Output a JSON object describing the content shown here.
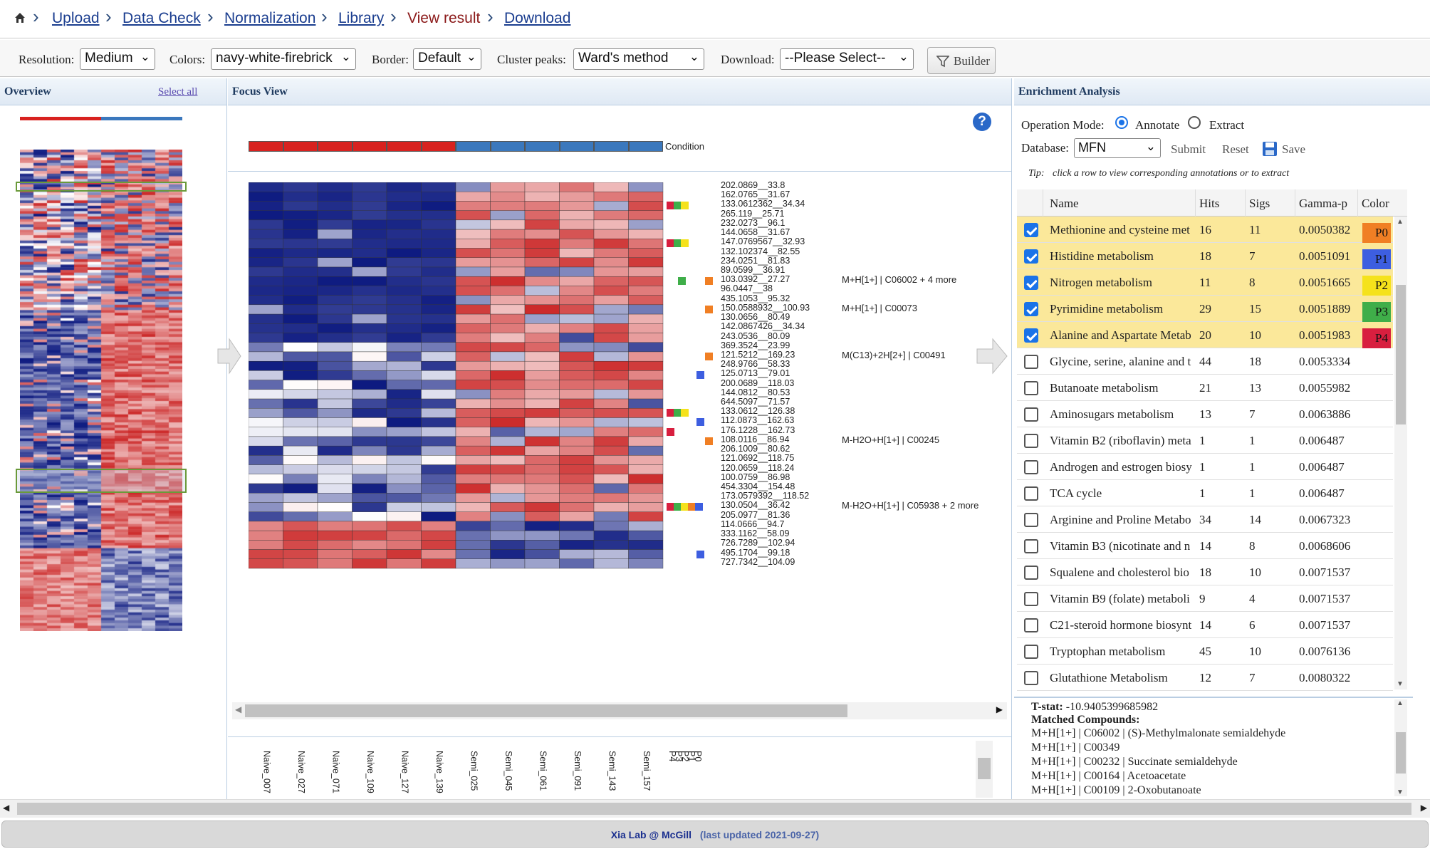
{
  "breadcrumb": {
    "items": [
      "Upload",
      "Data Check",
      "Normalization",
      "Library",
      "View result",
      "Download"
    ]
  },
  "toolbar": {
    "resolution_label": "Resolution:",
    "resolution_value": "Medium",
    "colors_label": "Colors:",
    "colors_value": "navy-white-firebrick",
    "border_label": "Border:",
    "border_value": "Default",
    "cluster_label": "Cluster peaks:",
    "cluster_value": "Ward's method",
    "download_label": "Download:",
    "download_value": "--Please Select--",
    "builder_label": "Builder"
  },
  "overview": {
    "title": "Overview",
    "select_all": "Select all"
  },
  "focus": {
    "title": "Focus View",
    "condition_label": "Condition",
    "peaks": [
      "202.0869__33.8",
      "162.0765__31.67",
      "133.0612362__34.34",
      "265.119__25.71",
      "232.0273__96.1",
      "144.0658__31.67",
      "147.0769567__32.93",
      "132.102374__82.55",
      "234.0251__81.83",
      "89.0599__36.91",
      "103.0392__27.27",
      "96.0447__38",
      "435.1053__95.32",
      "150.0588932__100.93",
      "130.0656__80.49",
      "142.0867426__34.34",
      "243.0536__80.09",
      "369.3524__23.99",
      "121.5212__169.23",
      "248.9766__58.33",
      "125.0713__79.01",
      "200.0689__118.03",
      "144.0812__80.53",
      "644.5097__71.57",
      "133.0612__126.38",
      "112.0873__162.63",
      "176.1228__162.73",
      "108.0116__86.94",
      "206.1009__80.62",
      "121.0692__118.75",
      "120.0659__118.24",
      "100.0759__86.98",
      "454.3304__154.48",
      "173.0579392__118.52",
      "130.0504__36.42",
      "205.0977__81.36",
      "114.0666__94.7",
      "333.1162__58.09",
      "726.7289__102.94",
      "495.1704__99.18",
      "727.7342__104.09"
    ],
    "annotations": [
      {
        "row": 10,
        "text": "M+H[1+] | C06002 + 4 more"
      },
      {
        "row": 13,
        "text": "M+H[1+] | C00073"
      },
      {
        "row": 18,
        "text": "M(C13)+2H[2+] | C00491"
      },
      {
        "row": 27,
        "text": "M-H2O+H[1+] | C00245"
      },
      {
        "row": 34,
        "text": "M-H2O+H[1+] | C05938 + 2 more"
      }
    ],
    "samples": [
      "Naive_007",
      "Naive_027",
      "Naive_071",
      "Naive_109",
      "Naive_127",
      "Naive_139",
      "Semi_025",
      "Semi_045",
      "Semi_061",
      "Semi_091",
      "Semi_143",
      "Semi_157"
    ],
    "marker_labels": [
      "P0",
      "P1",
      "P2",
      "P3",
      "P4"
    ]
  },
  "enrichment": {
    "title": "Enrichment Analysis",
    "op_mode_label": "Operation Mode:",
    "annotate_label": "Annotate",
    "extract_label": "Extract",
    "database_label": "Database:",
    "database_value": "MFN",
    "submit_label": "Submit",
    "reset_label": "Reset",
    "save_label": "Save",
    "tip_label": "Tip:",
    "tip_text": "click a row to view corresponding annotations or to extract",
    "columns": [
      "Name",
      "Hits",
      "Sigs",
      "Gamma-p",
      "Color"
    ],
    "rows": [
      {
        "name": "Methionine and cysteine met",
        "hits": "16",
        "sigs": "11",
        "p": "0.0050382",
        "color": "P0",
        "checked": true
      },
      {
        "name": "Histidine metabolism",
        "hits": "18",
        "sigs": "7",
        "p": "0.0051091",
        "color": "P1",
        "checked": true
      },
      {
        "name": "Nitrogen metabolism",
        "hits": "11",
        "sigs": "8",
        "p": "0.0051665",
        "color": "P2",
        "checked": true
      },
      {
        "name": "Pyrimidine metabolism",
        "hits": "29",
        "sigs": "15",
        "p": "0.0051889",
        "color": "P3",
        "checked": true
      },
      {
        "name": "Alanine and Aspartate Metab",
        "hits": "20",
        "sigs": "10",
        "p": "0.0051983",
        "color": "P4",
        "checked": true
      },
      {
        "name": "Glycine, serine, alanine and t",
        "hits": "44",
        "sigs": "18",
        "p": "0.0053334",
        "color": "",
        "checked": false
      },
      {
        "name": "Butanoate metabolism",
        "hits": "21",
        "sigs": "13",
        "p": "0.0055982",
        "color": "",
        "checked": false
      },
      {
        "name": "Aminosugars metabolism",
        "hits": "13",
        "sigs": "7",
        "p": "0.0063886",
        "color": "",
        "checked": false
      },
      {
        "name": "Vitamin B2 (riboflavin) meta",
        "hits": "1",
        "sigs": "1",
        "p": "0.006487",
        "color": "",
        "checked": false
      },
      {
        "name": "Androgen and estrogen biosy",
        "hits": "1",
        "sigs": "1",
        "p": "0.006487",
        "color": "",
        "checked": false
      },
      {
        "name": "TCA cycle",
        "hits": "1",
        "sigs": "1",
        "p": "0.006487",
        "color": "",
        "checked": false
      },
      {
        "name": "Arginine and Proline Metabo",
        "hits": "34",
        "sigs": "14",
        "p": "0.0067323",
        "color": "",
        "checked": false
      },
      {
        "name": "Vitamin B3 (nicotinate and n",
        "hits": "14",
        "sigs": "8",
        "p": "0.0068606",
        "color": "",
        "checked": false
      },
      {
        "name": "Squalene and cholesterol bio",
        "hits": "18",
        "sigs": "10",
        "p": "0.0071537",
        "color": "",
        "checked": false
      },
      {
        "name": "Vitamin B9 (folate) metaboli",
        "hits": "9",
        "sigs": "4",
        "p": "0.0071537",
        "color": "",
        "checked": false
      },
      {
        "name": "C21-steroid hormone biosynt",
        "hits": "14",
        "sigs": "6",
        "p": "0.0071537",
        "color": "",
        "checked": false
      },
      {
        "name": "Tryptophan metabolism",
        "hits": "45",
        "sigs": "10",
        "p": "0.0076136",
        "color": "",
        "checked": false
      },
      {
        "name": "Glutathione Metabolism",
        "hits": "12",
        "sigs": "7",
        "p": "0.0080322",
        "color": "",
        "checked": false
      }
    ],
    "palette": {
      "P0": "#f07f24",
      "P1": "#3d5ee0",
      "P2": "#f5e21b",
      "P3": "#3fae49",
      "P4": "#d81f3f"
    },
    "details": {
      "tstat_label": "T-stat:",
      "tstat_value": "-10.9405399685982",
      "matched_label": "Matched Compounds",
      "compounds": [
        "M+H[1+] | C06002 | (S)-Methylmalonate semialdehyde",
        "M+H[1+] | C00349",
        "M+H[1+] | C00232 | Succinate semialdehyde",
        "M+H[1+] | C00164 | Acetoacetate",
        "M+H[1+] | C00109 | 2-Oxobutanoate"
      ]
    }
  },
  "footer": {
    "lab": "Xia Lab @ McGill",
    "updated": "(last updated 2021-09-27)"
  },
  "colors": {
    "navy": "#0d1a80",
    "white": "#ffffff",
    "firebrick": "#cc2a2a",
    "condition_naive": "#d8221f",
    "condition_semi": "#3b78bd"
  }
}
